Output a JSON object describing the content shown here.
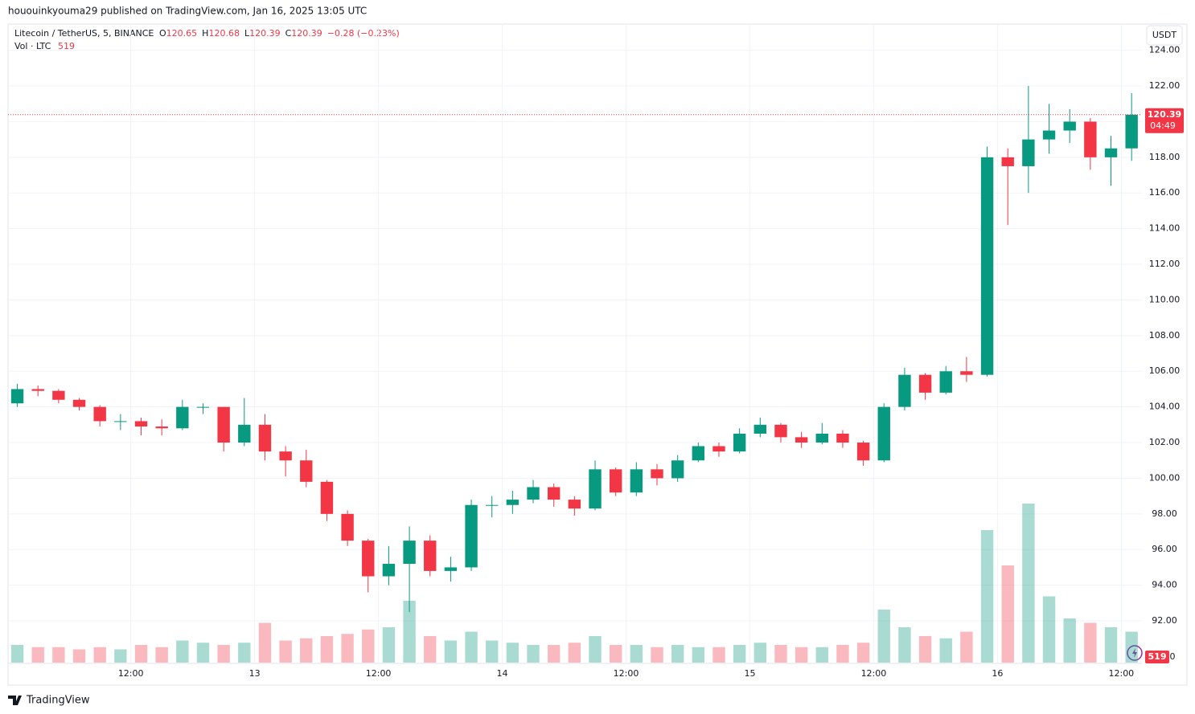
{
  "header": {
    "published": "hououinkyouma29 published on TradingView.com, Jan 16, 2025 13:05 UTC",
    "symbol": "Litecoin / TetherUS, 5, BINANCE",
    "ohlc": [
      {
        "key": "O",
        "text": "120.65"
      },
      {
        "key": "H",
        "text": "120.68"
      },
      {
        "key": "L",
        "text": "120.39"
      },
      {
        "key": "C",
        "text": "120.39"
      }
    ],
    "change": "−0.28 (−0.23%)",
    "volume_label": "Vol · LTC",
    "volume_text": "519",
    "currency": "USDT",
    "brand": "TradingView"
  },
  "chart_data": {
    "type": "candlestick",
    "x": [
      1,
      3,
      5,
      7,
      9,
      11,
      13,
      15,
      17,
      19,
      21,
      23,
      25,
      27,
      29,
      31,
      33,
      35,
      37,
      39,
      41,
      43,
      45,
      47,
      49,
      51,
      53,
      55,
      57,
      59,
      61,
      63,
      65,
      67,
      69,
      71,
      73,
      75,
      77,
      79,
      81,
      83,
      85,
      87,
      89,
      91,
      93,
      95,
      97,
      99,
      101,
      103,
      105,
      107,
      109
    ],
    "open": [
      104.2,
      105.0,
      104.9,
      104.4,
      104.0,
      103.2,
      103.2,
      102.9,
      102.8,
      104.0,
      104.0,
      102.0,
      103.0,
      101.5,
      101.0,
      99.8,
      98.0,
      96.5,
      94.5,
      95.2,
      96.5,
      94.8,
      95.0,
      98.5,
      98.5,
      98.8,
      99.5,
      98.8,
      98.3,
      100.5,
      99.2,
      100.5,
      100.0,
      101.0,
      101.8,
      101.5,
      102.5,
      103.0,
      102.3,
      102.0,
      102.5,
      102.0,
      101.0,
      104.0,
      105.8,
      104.8,
      106.0,
      105.8,
      118.0,
      117.5,
      119.0,
      119.5,
      120.0,
      118.0,
      118.5
    ],
    "high": [
      105.3,
      105.2,
      105.0,
      104.5,
      104.1,
      103.6,
      103.4,
      103.3,
      104.4,
      104.2,
      104.0,
      104.5,
      103.6,
      101.8,
      101.6,
      99.9,
      98.2,
      96.6,
      96.2,
      97.3,
      96.8,
      95.6,
      98.8,
      99.0,
      99.3,
      99.9,
      99.7,
      99.0,
      101.0,
      100.6,
      100.9,
      100.8,
      101.3,
      102.0,
      102.0,
      102.8,
      103.4,
      103.1,
      102.6,
      103.1,
      102.7,
      102.1,
      104.2,
      106.2,
      105.9,
      106.3,
      106.8,
      118.6,
      118.5,
      122.0,
      121.0,
      120.7,
      120.2,
      119.2,
      121.6
    ],
    "low": [
      104.0,
      104.6,
      104.2,
      103.8,
      102.9,
      102.7,
      102.4,
      102.4,
      102.7,
      103.6,
      101.5,
      101.8,
      101.0,
      100.1,
      99.5,
      97.6,
      96.2,
      93.6,
      94.0,
      92.5,
      94.5,
      94.2,
      94.8,
      97.8,
      98.0,
      98.6,
      98.4,
      97.9,
      98.2,
      99.0,
      99.0,
      99.6,
      99.8,
      100.9,
      101.2,
      101.4,
      102.3,
      102.0,
      101.7,
      101.9,
      101.7,
      100.7,
      100.9,
      103.8,
      104.4,
      104.7,
      105.4,
      105.7,
      114.2,
      116.0,
      118.2,
      118.8,
      117.3,
      116.4,
      117.8
    ],
    "close": [
      105.0,
      104.9,
      104.4,
      104.0,
      103.2,
      103.2,
      102.9,
      102.8,
      104.0,
      104.0,
      102.0,
      103.0,
      101.5,
      101.0,
      99.8,
      98.0,
      96.5,
      94.5,
      95.2,
      96.5,
      94.8,
      95.0,
      98.5,
      98.5,
      98.8,
      99.5,
      98.8,
      98.3,
      100.5,
      99.2,
      100.5,
      100.0,
      101.0,
      101.8,
      101.5,
      102.5,
      103.0,
      102.3,
      102.0,
      102.5,
      102.0,
      101.0,
      104.0,
      105.8,
      104.8,
      106.0,
      105.8,
      118.0,
      117.5,
      119.0,
      119.5,
      120.0,
      118.0,
      118.5,
      120.39
    ],
    "volume": [
      4000,
      3500,
      3500,
      3000,
      3500,
      3000,
      4000,
      3500,
      5000,
      4500,
      4000,
      4500,
      9000,
      5000,
      5500,
      6000,
      6500,
      7500,
      8000,
      14000,
      6000,
      5000,
      7000,
      5000,
      4500,
      4000,
      4000,
      4500,
      6000,
      4000,
      4000,
      3500,
      4000,
      3500,
      3500,
      4000,
      4500,
      4000,
      3500,
      3500,
      4000,
      4500,
      12000,
      8000,
      6000,
      5500,
      7000,
      30000,
      22000,
      36000,
      15000,
      10000,
      9000,
      8000,
      7000
    ],
    "up_color": "#089981",
    "down_color": "#f23645",
    "xlim": [
      0.1,
      110
    ],
    "ylim": [
      89.66,
      125.47
    ],
    "vlim": [
      0,
      40000
    ],
    "xticks": [
      {
        "value": 12,
        "label": "12:00"
      },
      {
        "value": 24,
        "label": "13"
      },
      {
        "value": 36,
        "label": "12:00"
      },
      {
        "value": 48,
        "label": "14"
      },
      {
        "value": 60,
        "label": "12:00"
      },
      {
        "value": 72,
        "label": "15"
      },
      {
        "value": 84,
        "label": "12:00"
      },
      {
        "value": 96,
        "label": "16"
      },
      {
        "value": 108,
        "label": "12:00"
      }
    ],
    "yticks": [
      {
        "value": 92,
        "label": "92.00"
      },
      {
        "value": 94,
        "label": "94.00"
      },
      {
        "value": 96,
        "label": "96.00"
      },
      {
        "value": 98,
        "label": "98.00"
      },
      {
        "value": 100,
        "label": "100.00"
      },
      {
        "value": 102,
        "label": "102.00"
      },
      {
        "value": 104,
        "label": "104.00"
      },
      {
        "value": 106,
        "label": "106.00"
      },
      {
        "value": 108,
        "label": "108.00"
      },
      {
        "value": 110,
        "label": "110.00"
      },
      {
        "value": 112,
        "label": "112.00"
      },
      {
        "value": 114,
        "label": "114.00"
      },
      {
        "value": 116,
        "label": "116.00"
      },
      {
        "value": 118,
        "label": "118.00"
      },
      {
        "value": 120,
        "label": "120.00"
      },
      {
        "value": 122,
        "label": "122.00"
      },
      {
        "value": 124,
        "label": "124.00"
      }
    ],
    "vticks": [
      0
    ],
    "last_price": 120.39,
    "countdown": "04:49",
    "grid": true
  }
}
